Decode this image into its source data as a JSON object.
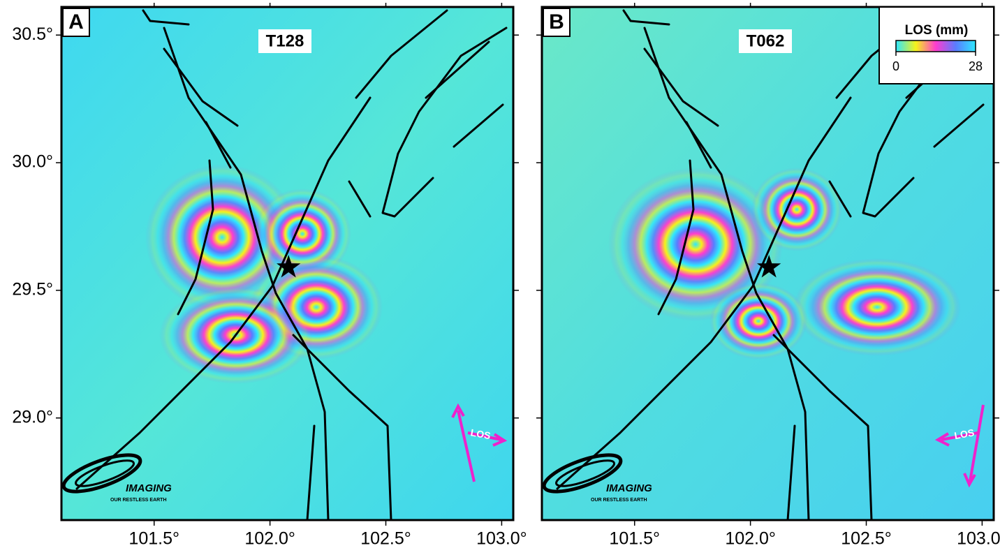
{
  "panels": [
    {
      "label": "A",
      "track": "T128",
      "los_label": "LOS"
    },
    {
      "label": "B",
      "track": "T062",
      "los_label": "LOS"
    }
  ],
  "axes": {
    "xlim": [
      101.1,
      103.05
    ],
    "ylim": [
      28.6,
      30.61
    ],
    "xticks": [
      {
        "value": 101.5,
        "label": "101.5°"
      },
      {
        "value": 102.0,
        "label": "102.0°"
      },
      {
        "value": 102.5,
        "label": "102.5°"
      },
      {
        "value": 103.0,
        "label": "103.0°"
      }
    ],
    "yticks": [
      {
        "value": 29.0,
        "label": "29.0°"
      },
      {
        "value": 29.5,
        "label": "29.5°"
      },
      {
        "value": 30.0,
        "label": "30.0°"
      },
      {
        "value": 30.5,
        "label": "30.5°"
      }
    ]
  },
  "epicenter": {
    "lon": 102.08,
    "lat": 29.59
  },
  "colorbar": {
    "title": "LOS (mm)",
    "range": [
      0,
      28
    ],
    "ticks": [
      0,
      28
    ]
  },
  "logo": {
    "name": "IMAGING",
    "tagline": "OUR RESTLESS EARTH"
  }
}
